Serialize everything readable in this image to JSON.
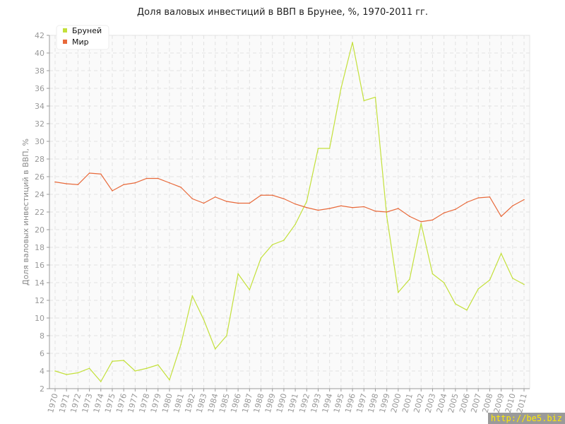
{
  "chart_data": {
    "type": "line",
    "title": "Доля валовых инвестиций в ВВП в Брунее, %, 1970-2011 гг.",
    "xlabel": "",
    "ylabel": "Доля валовых инвестиций в ВВП, %",
    "ylim": [
      2,
      42
    ],
    "yticks": [
      2,
      4,
      6,
      8,
      10,
      12,
      14,
      16,
      18,
      20,
      22,
      24,
      26,
      28,
      30,
      32,
      34,
      36,
      38,
      40,
      42
    ],
    "grid": true,
    "legend_position": "top-left",
    "x": [
      1970,
      1971,
      1972,
      1973,
      1974,
      1975,
      1976,
      1977,
      1978,
      1979,
      1980,
      1981,
      1982,
      1983,
      1984,
      1985,
      1986,
      1987,
      1988,
      1989,
      1990,
      1991,
      1992,
      1993,
      1994,
      1995,
      1996,
      1997,
      1998,
      1999,
      2000,
      2001,
      2002,
      2003,
      2004,
      2005,
      2006,
      2007,
      2008,
      2009,
      2010,
      2011
    ],
    "series": [
      {
        "name": "Бруней",
        "color": "#c3e03a",
        "values": [
          4.0,
          3.6,
          3.8,
          4.3,
          2.8,
          5.1,
          5.2,
          4.0,
          4.3,
          4.7,
          3.0,
          7.0,
          12.5,
          9.8,
          6.5,
          8.0,
          15.0,
          13.2,
          16.8,
          18.3,
          18.8,
          20.6,
          23.2,
          29.2,
          29.2,
          36.0,
          41.2,
          34.6,
          35.0,
          21.5,
          12.9,
          14.4,
          20.7,
          15.0,
          14.0,
          11.6,
          10.9,
          13.3,
          14.3,
          17.3,
          14.5,
          13.8
        ]
      },
      {
        "name": "Мир",
        "color": "#e8693a",
        "values": [
          25.4,
          25.2,
          25.1,
          26.4,
          26.3,
          24.4,
          25.1,
          25.3,
          25.8,
          25.8,
          25.3,
          24.8,
          23.5,
          23.0,
          23.7,
          23.2,
          23.0,
          23.0,
          23.9,
          23.9,
          23.5,
          22.9,
          22.5,
          22.2,
          22.4,
          22.7,
          22.5,
          22.6,
          22.1,
          22.0,
          22.4,
          21.5,
          20.9,
          21.1,
          21.9,
          22.3,
          23.1,
          23.6,
          23.7,
          21.5,
          22.7,
          23.4
        ]
      }
    ]
  },
  "watermark": "http://be5.biz"
}
